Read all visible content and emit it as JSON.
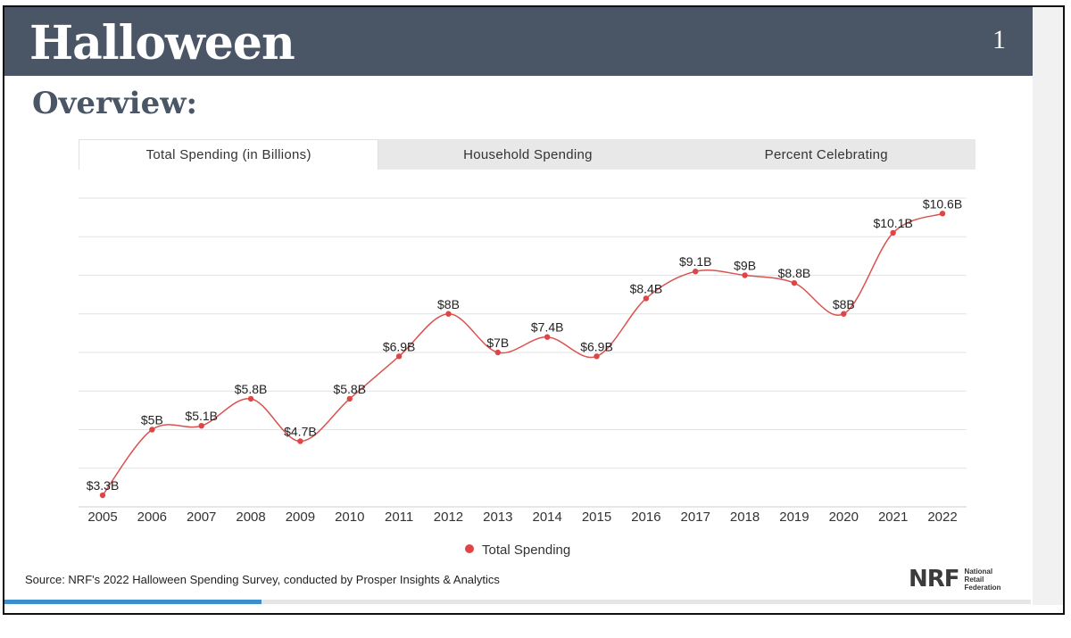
{
  "header": {
    "title": "Halloween",
    "page_number": "1"
  },
  "subtitle": "Overview:",
  "tabs": [
    {
      "label": "Total Spending (in Billions)",
      "active": true
    },
    {
      "label": "Household Spending",
      "active": false
    },
    {
      "label": "Percent Celebrating",
      "active": false
    }
  ],
  "source": "Source: NRF's 2022 Halloween Spending Survey, conducted by Prosper Insights & Analytics",
  "logo": {
    "mark": "NRF",
    "line1": "National",
    "line2": "Retail",
    "line3": "Federation"
  },
  "progress": {
    "fraction": 0.25
  },
  "colors": {
    "header": "#4a5666",
    "series": "#e04545",
    "line": "#d9534f",
    "progress": "#3a8fcc"
  },
  "chart_data": {
    "type": "line",
    "x": [
      "2005",
      "2006",
      "2007",
      "2008",
      "2009",
      "2010",
      "2011",
      "2012",
      "2013",
      "2014",
      "2015",
      "2016",
      "2017",
      "2018",
      "2019",
      "2020",
      "2021",
      "2022"
    ],
    "series": [
      {
        "name": "Total Spending",
        "values": [
          3.3,
          5,
          5.1,
          5.8,
          4.7,
          5.8,
          6.9,
          8,
          7,
          7.4,
          6.9,
          8.4,
          9.1,
          9,
          8.8,
          8,
          10.1,
          10.6
        ],
        "labels": [
          "$3.3B",
          "$5B",
          "$5.1B",
          "$5.8B",
          "$4.7B",
          "$5.8B",
          "$6.9B",
          "$8B",
          "$7B",
          "$7.4B",
          "$6.9B",
          "$8.4B",
          "$9.1B",
          "$9B",
          "$8.8B",
          "$8B",
          "$10.1B",
          "$10.6B"
        ]
      }
    ],
    "ylim": [
      3,
      11
    ],
    "grid": true,
    "legend": "bottom"
  }
}
